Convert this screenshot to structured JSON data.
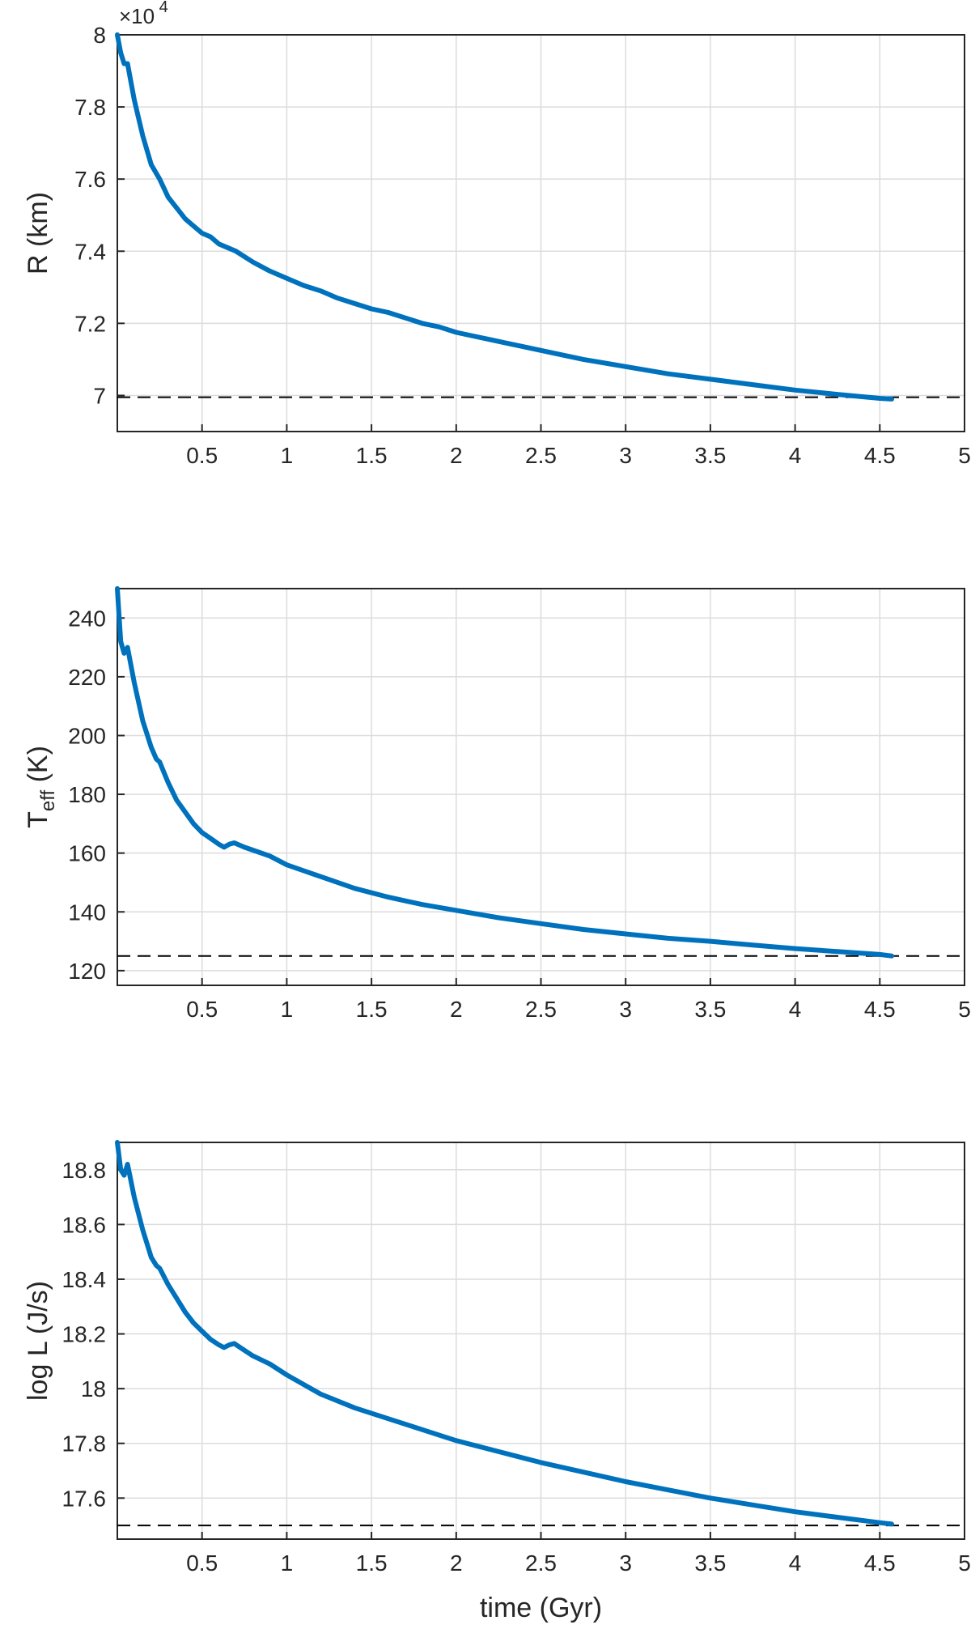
{
  "chart_data": [
    {
      "type": "line",
      "ylabel": "R (km)",
      "exponent_label": "×10",
      "exponent_power": "4",
      "xlim": [
        0,
        5
      ],
      "ylim": [
        6.9,
        8.0
      ],
      "grid": true,
      "xticks": [
        0.5,
        1,
        1.5,
        2,
        2.5,
        3,
        3.5,
        4,
        4.5,
        5
      ],
      "xtick_labels": [
        "0.5",
        "1",
        "1.5",
        "2",
        "2.5",
        "3",
        "3.5",
        "4",
        "4.5",
        "5"
      ],
      "yticks": [
        7.0,
        7.2,
        7.4,
        7.6,
        7.8,
        8.0
      ],
      "ytick_labels": [
        "7",
        "7.2",
        "7.4",
        "7.6",
        "7.8",
        "8"
      ],
      "reference_line": 6.995,
      "series": [
        {
          "x": [
            0.0,
            0.02,
            0.04,
            0.06,
            0.1,
            0.15,
            0.2,
            0.25,
            0.3,
            0.35,
            0.4,
            0.45,
            0.5,
            0.55,
            0.6,
            0.65,
            0.7,
            0.8,
            0.9,
            1.0,
            1.1,
            1.2,
            1.3,
            1.4,
            1.5,
            1.6,
            1.7,
            1.8,
            1.9,
            2.0,
            2.1,
            2.2,
            2.3,
            2.5,
            2.75,
            3.0,
            3.25,
            3.5,
            3.75,
            4.0,
            4.25,
            4.5,
            4.57
          ],
          "y": [
            8.0,
            7.95,
            7.92,
            7.92,
            7.82,
            7.72,
            7.64,
            7.6,
            7.55,
            7.52,
            7.49,
            7.47,
            7.45,
            7.44,
            7.42,
            7.41,
            7.4,
            7.37,
            7.345,
            7.325,
            7.305,
            7.29,
            7.27,
            7.255,
            7.24,
            7.23,
            7.215,
            7.2,
            7.19,
            7.175,
            7.165,
            7.155,
            7.145,
            7.125,
            7.1,
            7.08,
            7.06,
            7.045,
            7.03,
            7.015,
            7.003,
            6.992,
            6.99
          ]
        }
      ]
    },
    {
      "type": "line",
      "ylabel": "T",
      "ylabel_subscript": "eff",
      "ylabel_unit": " (K)",
      "xlim": [
        0,
        5
      ],
      "ylim": [
        115,
        250
      ],
      "grid": true,
      "xticks": [
        0.5,
        1,
        1.5,
        2,
        2.5,
        3,
        3.5,
        4,
        4.5,
        5
      ],
      "xtick_labels": [
        "0.5",
        "1",
        "1.5",
        "2",
        "2.5",
        "3",
        "3.5",
        "4",
        "4.5",
        "5"
      ],
      "yticks": [
        120,
        140,
        160,
        180,
        200,
        220,
        240
      ],
      "ytick_labels": [
        "120",
        "140",
        "160",
        "180",
        "200",
        "220",
        "240"
      ],
      "reference_line": 125,
      "series": [
        {
          "x": [
            0.0,
            0.02,
            0.04,
            0.06,
            0.1,
            0.15,
            0.2,
            0.23,
            0.25,
            0.3,
            0.35,
            0.4,
            0.45,
            0.5,
            0.55,
            0.6,
            0.63,
            0.66,
            0.69,
            0.75,
            0.8,
            0.9,
            1.0,
            1.2,
            1.4,
            1.6,
            1.8,
            2.0,
            2.25,
            2.5,
            2.75,
            3.0,
            3.25,
            3.5,
            3.75,
            4.0,
            4.25,
            4.5,
            4.57
          ],
          "y": [
            250,
            232,
            228,
            230,
            218,
            205,
            196,
            192,
            191,
            184,
            178,
            174,
            170,
            167,
            165,
            163,
            162,
            163,
            163.5,
            162,
            161,
            159,
            156,
            152,
            148,
            145,
            142.5,
            140.5,
            138,
            136,
            134,
            132.5,
            131,
            130,
            128.7,
            127.5,
            126.5,
            125.5,
            125
          ]
        }
      ]
    },
    {
      "type": "line",
      "ylabel": "log L (J/s)",
      "xlabel": "time (Gyr)",
      "xlim": [
        0,
        5
      ],
      "ylim": [
        17.45,
        18.9
      ],
      "grid": true,
      "xticks": [
        0.5,
        1,
        1.5,
        2,
        2.5,
        3,
        3.5,
        4,
        4.5,
        5
      ],
      "xtick_labels": [
        "0.5",
        "1",
        "1.5",
        "2",
        "2.5",
        "3",
        "3.5",
        "4",
        "4.5",
        "5"
      ],
      "yticks": [
        17.6,
        17.8,
        18.0,
        18.2,
        18.4,
        18.6,
        18.8
      ],
      "ytick_labels": [
        "17.6",
        "17.8",
        "18",
        "18.2",
        "18.4",
        "18.6",
        "18.8"
      ],
      "reference_line": 17.5,
      "series": [
        {
          "x": [
            0.0,
            0.02,
            0.04,
            0.06,
            0.1,
            0.15,
            0.2,
            0.23,
            0.25,
            0.3,
            0.35,
            0.4,
            0.45,
            0.5,
            0.55,
            0.6,
            0.63,
            0.66,
            0.69,
            0.75,
            0.8,
            0.9,
            1.0,
            1.2,
            1.4,
            1.6,
            1.8,
            2.0,
            2.25,
            2.5,
            2.75,
            3.0,
            3.25,
            3.5,
            3.75,
            4.0,
            4.25,
            4.5,
            4.57
          ],
          "y": [
            18.9,
            18.8,
            18.78,
            18.82,
            18.7,
            18.58,
            18.48,
            18.45,
            18.44,
            18.38,
            18.33,
            18.28,
            18.24,
            18.21,
            18.18,
            18.16,
            18.15,
            18.16,
            18.165,
            18.14,
            18.12,
            18.09,
            18.05,
            17.98,
            17.93,
            17.89,
            17.85,
            17.81,
            17.77,
            17.73,
            17.695,
            17.66,
            17.63,
            17.6,
            17.575,
            17.55,
            17.53,
            17.51,
            17.505
          ]
        }
      ]
    }
  ],
  "colors": {
    "series": "#0072BD",
    "reference": "#000000",
    "grid": "#dcdcdc",
    "axis": "#262626"
  }
}
